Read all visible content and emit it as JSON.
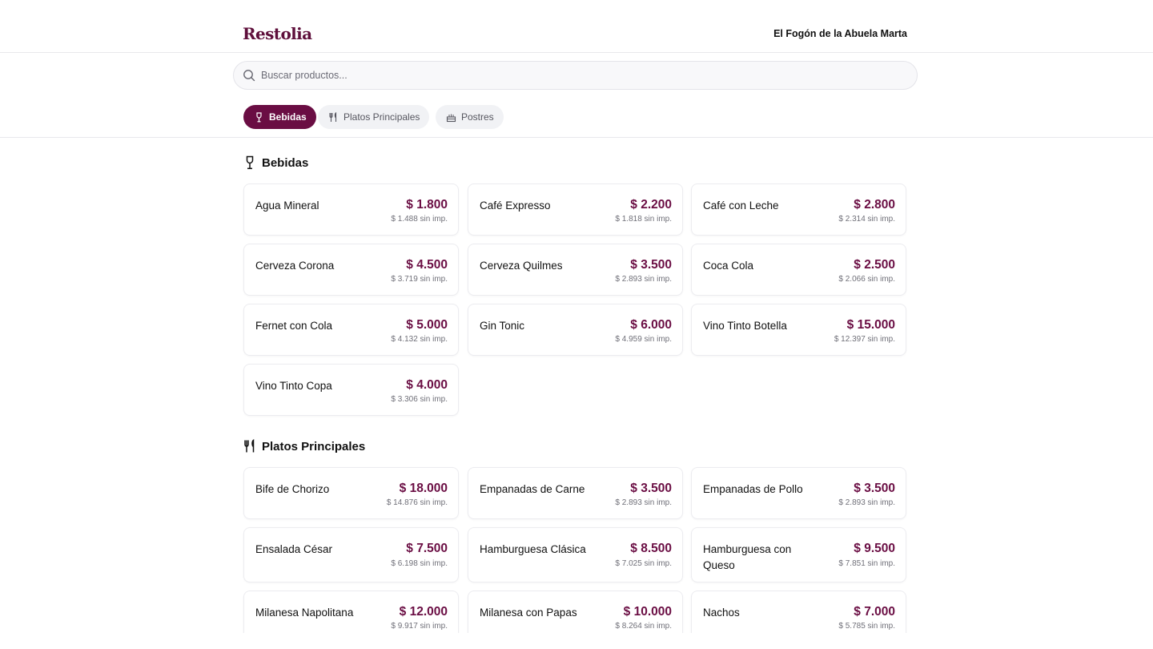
{
  "header": {
    "logo": "Restolia",
    "restaurant_name": "El Fogón de la Abuela Marta"
  },
  "search": {
    "placeholder": "Buscar productos...",
    "value": ""
  },
  "tabs": [
    {
      "label": "Bebidas",
      "icon": "wine-glass-icon",
      "active": true
    },
    {
      "label": "Platos Principales",
      "icon": "utensils-icon",
      "active": false
    },
    {
      "label": "Postres",
      "icon": "cake-icon",
      "active": false
    }
  ],
  "colors": {
    "accent": "#6a0d43",
    "logo": "#5e0f3b"
  },
  "sections": [
    {
      "title": "Bebidas",
      "icon": "wine-glass-icon",
      "items": [
        {
          "name": "Agua Mineral",
          "price": "$ 1.800",
          "net": "$ 1.488 sin imp."
        },
        {
          "name": "Café Expresso",
          "price": "$ 2.200",
          "net": "$ 1.818 sin imp."
        },
        {
          "name": "Café con Leche",
          "price": "$ 2.800",
          "net": "$ 2.314 sin imp."
        },
        {
          "name": "Cerveza Corona",
          "price": "$ 4.500",
          "net": "$ 3.719 sin imp."
        },
        {
          "name": "Cerveza Quilmes",
          "price": "$ 3.500",
          "net": "$ 2.893 sin imp."
        },
        {
          "name": "Coca Cola",
          "price": "$ 2.500",
          "net": "$ 2.066 sin imp."
        },
        {
          "name": "Fernet con Cola",
          "price": "$ 5.000",
          "net": "$ 4.132 sin imp."
        },
        {
          "name": "Gin Tonic",
          "price": "$ 6.000",
          "net": "$ 4.959 sin imp."
        },
        {
          "name": "Vino Tinto Botella",
          "price": "$ 15.000",
          "net": "$ 12.397 sin imp."
        },
        {
          "name": "Vino Tinto Copa",
          "price": "$ 4.000",
          "net": "$ 3.306 sin imp."
        }
      ]
    },
    {
      "title": "Platos Principales",
      "icon": "utensils-icon",
      "items": [
        {
          "name": "Bife de Chorizo",
          "price": "$ 18.000",
          "net": "$ 14.876 sin imp."
        },
        {
          "name": "Empanadas de Carne",
          "price": "$ 3.500",
          "net": "$ 2.893 sin imp."
        },
        {
          "name": "Empanadas de Pollo",
          "price": "$ 3.500",
          "net": "$ 2.893 sin imp."
        },
        {
          "name": "Ensalada César",
          "price": "$ 7.500",
          "net": "$ 6.198 sin imp."
        },
        {
          "name": "Hamburguesa Clásica",
          "price": "$ 8.500",
          "net": "$ 7.025 sin imp."
        },
        {
          "name": "Hamburguesa con Queso",
          "price": "$ 9.500",
          "net": "$ 7.851 sin imp."
        },
        {
          "name": "Milanesa Napolitana",
          "price": "$ 12.000",
          "net": "$ 9.917 sin imp."
        },
        {
          "name": "Milanesa con Papas",
          "price": "$ 10.000",
          "net": "$ 8.264 sin imp."
        },
        {
          "name": "Nachos",
          "price": "$ 7.000",
          "net": "$ 5.785 sin imp."
        }
      ]
    }
  ]
}
